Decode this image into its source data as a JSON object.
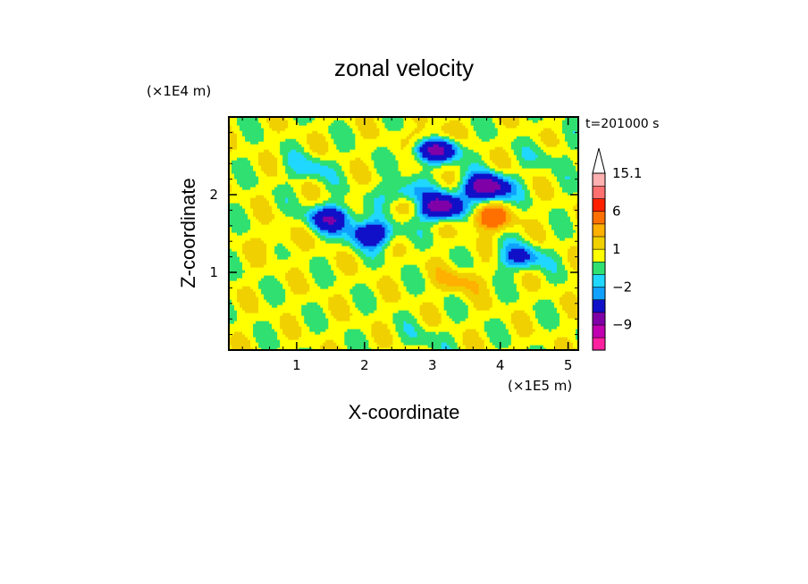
{
  "chart_data": {
    "type": "heatmap",
    "title": "zonal velocity",
    "xlabel": "X-coordinate",
    "ylabel": "Z-coordinate",
    "x_unit": "(×1E5 m)",
    "y_unit": "(×1E4 m)",
    "time_label": "t=201000 s",
    "xlim": [
      0.0,
      5.15
    ],
    "ylim": [
      0.0,
      3.0
    ],
    "x_ticks": [
      "1",
      "2",
      "3",
      "4",
      "5"
    ],
    "y_ticks": [
      "1",
      "2"
    ],
    "colorbar": {
      "levels": [
        -15,
        -12,
        -9,
        -6,
        -3,
        -2,
        -1,
        0,
        1,
        2,
        3,
        6,
        9,
        12,
        15.1
      ],
      "colors": [
        "#ff20a0",
        "#c000b0",
        "#8000a8",
        "#1010c8",
        "#10a0ff",
        "#20d8ff",
        "#30e070",
        "#ffff00",
        "#f0d000",
        "#ffb000",
        "#ff7000",
        "#ff2000",
        "#ff7070",
        "#ffb0b0"
      ],
      "labels": [
        "15.1",
        "6",
        "1",
        "−2",
        "−9"
      ],
      "extend_max": true
    },
    "features": [
      {
        "x": 3.05,
        "z": 2.6,
        "value": -9
      },
      {
        "x": 3.1,
        "z": 1.85,
        "value": -9
      },
      {
        "x": 3.8,
        "z": 2.1,
        "value": -9
      },
      {
        "x": 1.5,
        "z": 1.7,
        "value": -6
      },
      {
        "x": 2.1,
        "z": 1.5,
        "value": -6
      },
      {
        "x": 2.6,
        "z": 2.0,
        "value": -4
      },
      {
        "x": 4.3,
        "z": 1.2,
        "value": -4
      },
      {
        "x": 3.0,
        "z": 2.7,
        "value": 4
      },
      {
        "x": 2.7,
        "z": 1.9,
        "value": 3
      },
      {
        "x": 3.85,
        "z": 1.7,
        "value": 4
      },
      {
        "x": 3.4,
        "z": 0.9,
        "value": 2
      },
      {
        "x": 0.7,
        "z": 1.4,
        "value": 1
      },
      {
        "x": 1.2,
        "z": 2.35,
        "value": -2
      },
      {
        "x": 2.9,
        "z": 0.15,
        "value": -1
      },
      {
        "x": 4.7,
        "z": 2.5,
        "value": -1
      }
    ]
  }
}
